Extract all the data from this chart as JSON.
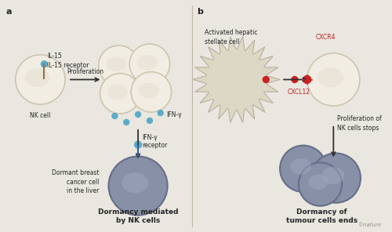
{
  "bg_color": "#eae7e0",
  "title_a": "a",
  "title_b": "b",
  "label_nk_cell": "NK cell",
  "label_il15": "IL-15",
  "label_il15r": "IL-15 receptor",
  "label_proliferation": "Proliferation",
  "label_ifny": "IFN-γ",
  "label_ifny_receptor": "IFN-γ\nreceptor",
  "label_dormant": "Dormant breast\ncancer cell\nin the liver",
  "label_dormancy_nk": "Dormancy mediated\nby NK cells",
  "label_activated": "Activated hepatic\nstellate cell",
  "label_cxcr4": "CXCR4",
  "label_cxcl12": "CXCL12",
  "label_proliferation_stops": "Proliferation of\nNK cells stops",
  "label_dormancy_ends": "Dormancy of\ntumour cells ends",
  "label_nature": "©nature",
  "cell_cream": "#f2ede2",
  "cell_cream_edge": "#ccc5b0",
  "cell_inner": "#e8e2d5",
  "cell_grey": "#8890a8",
  "cell_grey_edge": "#666e88",
  "cell_grey_inner": "#a0a8be",
  "stellate_color": "#ddd8c5",
  "stellate_edge": "#b8b0a0",
  "blue_dot": "#5aacc8",
  "red_dot": "#cc2222",
  "arrow_color": "#303030",
  "text_color": "#252525",
  "red_label_color": "#bb2222"
}
